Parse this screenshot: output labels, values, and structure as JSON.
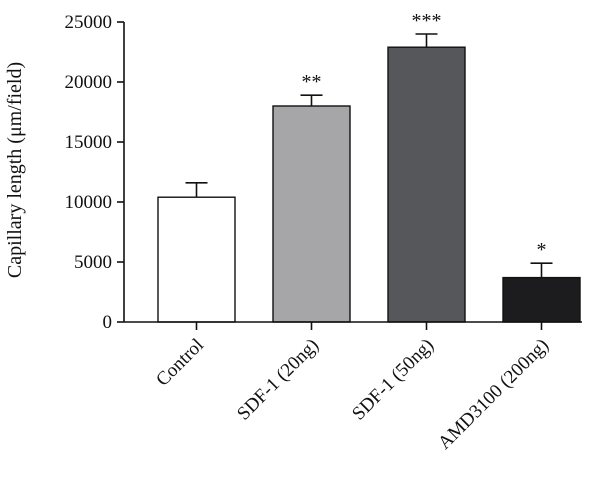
{
  "chart_data": {
    "type": "bar",
    "title": "",
    "xlabel": "",
    "ylabel": "Capillary length (μm/field)",
    "ylim": [
      0,
      25000
    ],
    "yticks": [
      0,
      5000,
      10000,
      15000,
      20000,
      25000
    ],
    "yticklabels": [
      "0",
      "5000",
      "10000",
      "15000",
      "20000",
      "25000"
    ],
    "categories": [
      "Control",
      "SDF-1 (20ng)",
      "SDF-1 (50ng)",
      "AMD3100 (200ng)"
    ],
    "values": [
      10400,
      18000,
      22900,
      3700
    ],
    "errors": [
      1200,
      900,
      1100,
      1200
    ],
    "significance": [
      "",
      "**",
      "***",
      "*"
    ],
    "bar_colors": [
      "#ffffff",
      "#a6a6a8",
      "#55575a",
      "#1c1b1d"
    ],
    "grid": false,
    "legend": "none"
  }
}
